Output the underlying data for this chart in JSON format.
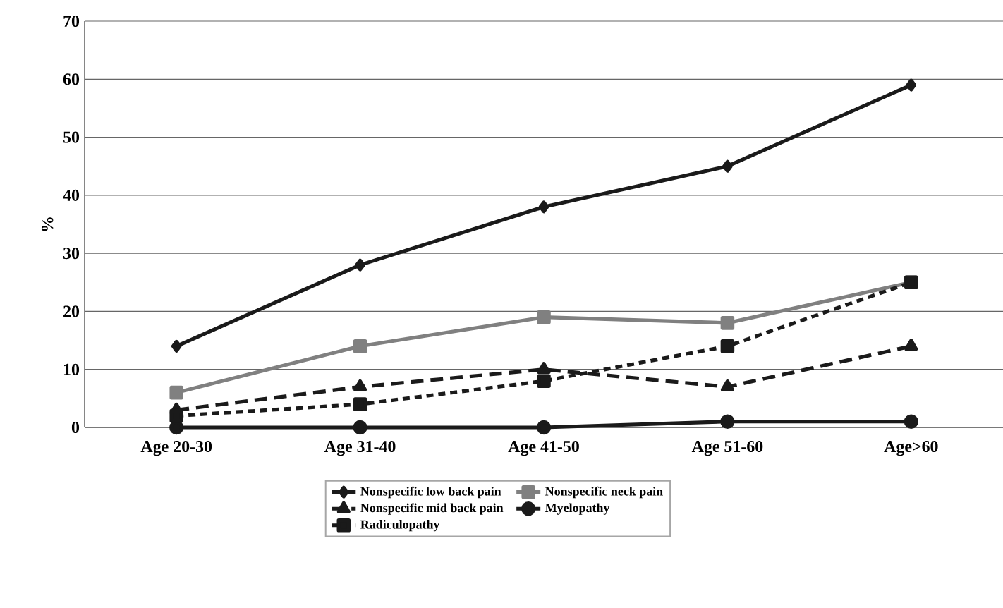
{
  "chart_data": {
    "type": "line",
    "ylabel": "%",
    "categories": [
      "Age 20-30",
      "Age 31-40",
      "Age 41-50",
      "Age 51-60",
      "Age>60"
    ],
    "ylim": [
      0,
      70
    ],
    "yticks": [
      0,
      10,
      20,
      30,
      40,
      50,
      60,
      70
    ],
    "grid": "y",
    "legend": "bottom",
    "series": [
      {
        "name": "Nonspecific low back pain",
        "color": "#1a1a1a",
        "marker": "diamond",
        "line_style": "solid",
        "values": [
          14,
          28,
          38,
          45,
          59
        ]
      },
      {
        "name": "Nonspecific neck pain",
        "color": "#808080",
        "marker": "square",
        "line_style": "solid",
        "values": [
          6,
          14,
          19,
          18,
          25
        ]
      },
      {
        "name": "Nonspecific mid back pain",
        "color": "#1a1a1a",
        "marker": "triangle",
        "line_style": "dashed",
        "values": [
          3,
          7,
          10,
          7,
          14
        ]
      },
      {
        "name": "Myelopathy",
        "color": "#1a1a1a",
        "marker": "circle",
        "line_style": "solid",
        "values": [
          0,
          0,
          0,
          1,
          1
        ]
      },
      {
        "name": "Radiculopathy",
        "color": "#1a1a1a",
        "marker": "square",
        "line_style": "dotted",
        "values": [
          2,
          4,
          8,
          14,
          25
        ]
      }
    ]
  }
}
